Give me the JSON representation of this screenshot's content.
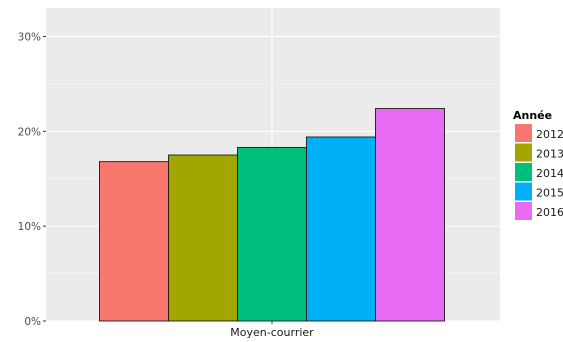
{
  "chart_data": {
    "type": "bar",
    "categories": [
      "Moyen-courrier"
    ],
    "series": [
      {
        "name": "2012",
        "values": [
          0.168
        ]
      },
      {
        "name": "2013",
        "values": [
          0.175
        ]
      },
      {
        "name": "2014",
        "values": [
          0.183
        ]
      },
      {
        "name": "2015",
        "values": [
          0.194
        ]
      },
      {
        "name": "2016",
        "values": [
          0.224
        ]
      }
    ],
    "colors": [
      "#F8766D",
      "#A3A500",
      "#00BF7D",
      "#00B0F6",
      "#E76BF3"
    ],
    "title": "",
    "xlabel": "",
    "ylabel": "",
    "ylim": [
      0,
      0.33
    ],
    "yticks": [
      0,
      0.1,
      0.2,
      0.3
    ],
    "ytick_labels": [
      "0%",
      "10%",
      "20%",
      "30%"
    ],
    "legend": {
      "title": "Année",
      "position": "right"
    },
    "grid": true,
    "panel_background": "#EBEBEB"
  }
}
